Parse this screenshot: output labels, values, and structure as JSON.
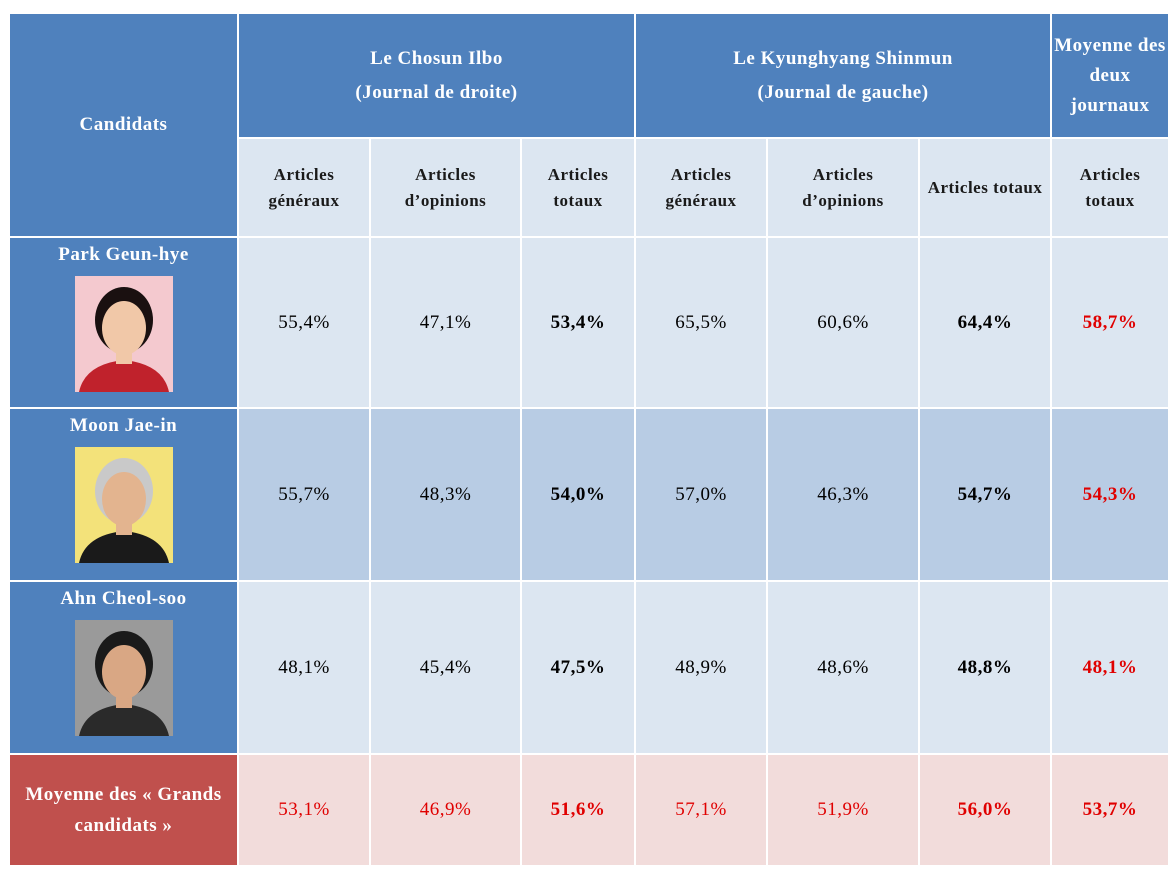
{
  "header": {
    "candidates": "Candidats",
    "groups": [
      {
        "name": "Le Chosun Ilbo",
        "subtitle": "(Journal de droite)"
      },
      {
        "name": "Le Kyunghyang Shinmun",
        "subtitle": "(Journal de gauche)"
      },
      {
        "name": "Moyenne des deux journaux"
      }
    ],
    "subheaders": [
      "Articles généraux",
      "Articles d’opinions",
      "Articles totaux",
      "Articles généraux",
      "Articles d’opinions",
      "Articles totaux",
      "Articles totaux"
    ]
  },
  "table": {
    "rows": [
      {
        "name": "Park Geun-hye",
        "values": [
          "55,4%",
          "47,1%",
          "53,4%",
          "65,5%",
          "60,6%",
          "64,4%",
          "58,7%"
        ]
      },
      {
        "name": "Moon Jae-in",
        "values": [
          "55,7%",
          "48,3%",
          "54,0%",
          "57,0%",
          "46,3%",
          "54,7%",
          "54,3%"
        ]
      },
      {
        "name": "Ahn Cheol-soo",
        "values": [
          "48,1%",
          "45,4%",
          "47,5%",
          "48,9%",
          "48,6%",
          "48,8%",
          "48,1%"
        ]
      }
    ],
    "average": {
      "name": "Moyenne des « Grands candidats »",
      "values": [
        "53,1%",
        "46,9%",
        "51,6%",
        "57,1%",
        "51,9%",
        "56,0%",
        "53,7%"
      ]
    }
  }
}
